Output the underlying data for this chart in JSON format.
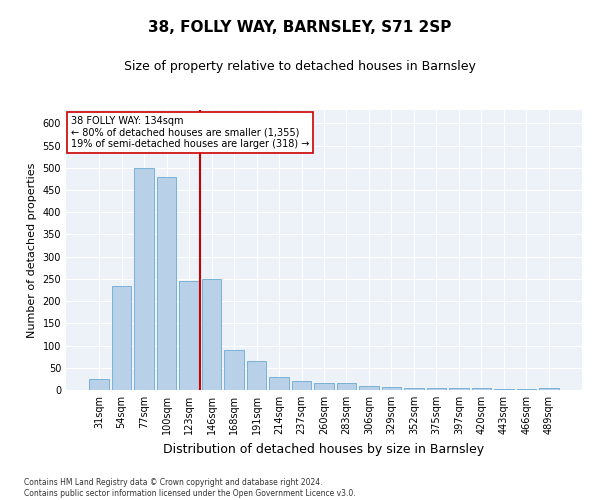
{
  "title": "38, FOLLY WAY, BARNSLEY, S71 2SP",
  "subtitle": "Size of property relative to detached houses in Barnsley",
  "xlabel": "Distribution of detached houses by size in Barnsley",
  "ylabel": "Number of detached properties",
  "categories": [
    "31sqm",
    "54sqm",
    "77sqm",
    "100sqm",
    "123sqm",
    "146sqm",
    "168sqm",
    "191sqm",
    "214sqm",
    "237sqm",
    "260sqm",
    "283sqm",
    "306sqm",
    "329sqm",
    "352sqm",
    "375sqm",
    "397sqm",
    "420sqm",
    "443sqm",
    "466sqm",
    "489sqm"
  ],
  "values": [
    25,
    235,
    500,
    480,
    245,
    250,
    90,
    65,
    30,
    20,
    15,
    15,
    10,
    6,
    5,
    5,
    5,
    5,
    2,
    2,
    5
  ],
  "bar_color": "#b8d0e8",
  "bar_edge_color": "#6aaad4",
  "vline_color": "#cc0000",
  "vline_x": 4.5,
  "annotation_text": "38 FOLLY WAY: 134sqm\n← 80% of detached houses are smaller (1,355)\n19% of semi-detached houses are larger (318) →",
  "annotation_box_color": "#ffffff",
  "annotation_box_edge": "#cc0000",
  "footer": "Contains HM Land Registry data © Crown copyright and database right 2024.\nContains public sector information licensed under the Open Government Licence v3.0.",
  "background_color": "#edf2f9",
  "ylim": [
    0,
    630
  ],
  "yticks": [
    0,
    50,
    100,
    150,
    200,
    250,
    300,
    350,
    400,
    450,
    500,
    550,
    600
  ],
  "grid_color": "#ffffff",
  "title_fontsize": 11,
  "subtitle_fontsize": 9,
  "ylabel_fontsize": 8,
  "xlabel_fontsize": 9,
  "tick_fontsize": 7,
  "annotation_fontsize": 7,
  "footer_fontsize": 5.5
}
